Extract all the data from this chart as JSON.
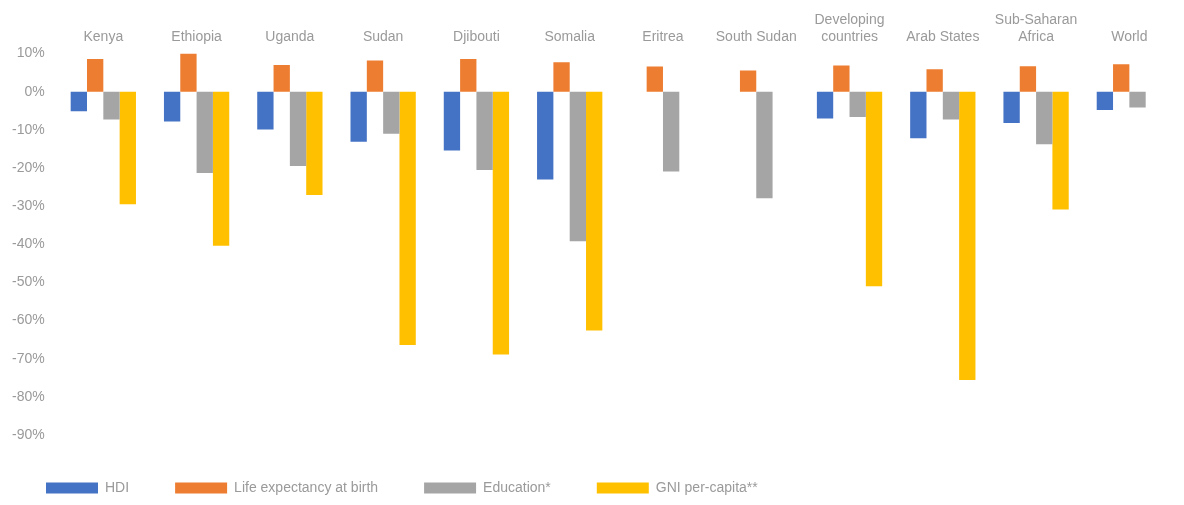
{
  "chart_data": {
    "type": "bar",
    "categories": [
      "Kenya",
      "Ethiopia",
      "Uganda",
      "Sudan",
      "Djibouti",
      "Somalia",
      "Eritrea",
      "South Sudan",
      "Developing countries",
      "Arab States",
      "Sub-Saharan Africa",
      "World"
    ],
    "series": [
      {
        "name": "HDI",
        "color": "#4472c4",
        "values": [
          -5.1,
          -7.8,
          -9.9,
          -13.1,
          -15.4,
          -23.0,
          null,
          null,
          -7.0,
          -12.2,
          -8.2,
          -4.8
        ]
      },
      {
        "name": "Life expectancy at birth",
        "color": "#ed7d31",
        "values": [
          8.6,
          10.0,
          7.0,
          8.2,
          8.6,
          7.7,
          6.6,
          5.6,
          6.9,
          5.9,
          6.7,
          7.2
        ]
      },
      {
        "name": "Education*",
        "color": "#a5a5a5",
        "values": [
          -7.3,
          -21.3,
          -19.5,
          -11.0,
          -20.5,
          -39.2,
          -20.9,
          -27.9,
          -6.6,
          -7.3,
          -13.8,
          -4.1
        ]
      },
      {
        "name": "GNI per-capita**",
        "color": "#ffc000",
        "values": [
          -29.5,
          -40.4,
          -27.1,
          -66.4,
          -68.9,
          -62.6,
          null,
          null,
          -51.0,
          -75.6,
          -30.9,
          null
        ]
      }
    ],
    "ylim": [
      -90,
      10
    ],
    "yticks": [
      {
        "value": 10,
        "label": "10%"
      },
      {
        "value": 0,
        "label": "0%"
      },
      {
        "value": -10,
        "label": "-10%"
      },
      {
        "value": -20,
        "label": "-20%"
      },
      {
        "value": -30,
        "label": "-30%"
      },
      {
        "value": -40,
        "label": "-40%"
      },
      {
        "value": -50,
        "label": "-50%"
      },
      {
        "value": -60,
        "label": "-60%"
      },
      {
        "value": -70,
        "label": "-70%"
      },
      {
        "value": -80,
        "label": "-80%"
      },
      {
        "value": -90,
        "label": "-90%"
      }
    ],
    "grid": false,
    "legend": "bottom left"
  }
}
